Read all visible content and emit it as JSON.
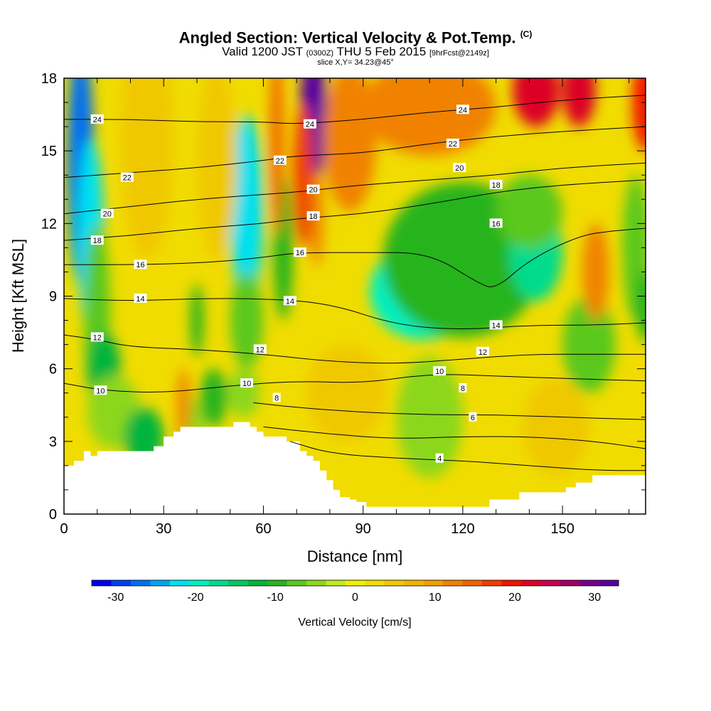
{
  "title": {
    "main": "Angled Section: Vertical Velocity & Pot.Temp.",
    "main_unit": "(C)",
    "valid_prefix": "Valid 1200 JST",
    "valid_utc": "(0300Z)",
    "valid_date": "THU 5 Feb 2015",
    "forecast": "[9hrFcst@2149z]",
    "slice": "slice X,Y= 34.23@45°"
  },
  "chart_data": {
    "type": "heatmap",
    "xlabel": "Distance [nm]",
    "ylabel": "Height [Kft MSL]",
    "xlim": [
      0,
      175
    ],
    "ylim": [
      0,
      18
    ],
    "x_ticks": [
      0,
      30,
      60,
      90,
      120,
      150
    ],
    "y_ticks": [
      0,
      3,
      6,
      9,
      12,
      15,
      18
    ],
    "colorbar": {
      "label": "Vertical Velocity [cm/s]",
      "range": [
        -33,
        33
      ],
      "ticks": [
        -30,
        -20,
        -10,
        0,
        10,
        20,
        30
      ],
      "colors": [
        "#0000f0",
        "#0040f0",
        "#0070f0",
        "#00a4f0",
        "#00e0f0",
        "#00f0c0",
        "#00dc8c",
        "#00c864",
        "#00b43c",
        "#28b41e",
        "#5ac81e",
        "#8cd71e",
        "#beeb1e",
        "#f0f000",
        "#f0dc00",
        "#f0c800",
        "#f0b400",
        "#f0a000",
        "#f08200",
        "#f06400",
        "#f03c00",
        "#f01400",
        "#dc0028",
        "#c80050",
        "#a00064",
        "#78008c",
        "#5a00a0"
      ]
    },
    "velocity_features": [
      {
        "x": 5,
        "y": 14.5,
        "w": 4,
        "h": 5,
        "value": -28
      },
      {
        "x": 8,
        "y": 11.5,
        "w": 4,
        "h": 4,
        "value": -22
      },
      {
        "x": 10,
        "y": 8,
        "w": 4,
        "h": 4,
        "value": -8
      },
      {
        "x": 12,
        "y": 6,
        "w": 5,
        "h": 1.5,
        "value": -12
      },
      {
        "x": 15,
        "y": 4.2,
        "w": 8,
        "h": 1.5,
        "value": -6
      },
      {
        "x": 24,
        "y": 3.2,
        "w": 6,
        "h": 1.2,
        "value": -12
      },
      {
        "x": 38,
        "y": 3.6,
        "w": 4,
        "h": 1.2,
        "value": -6
      },
      {
        "x": 45,
        "y": 4.8,
        "w": 4,
        "h": 1.2,
        "value": -10
      },
      {
        "x": 55,
        "y": 12.5,
        "w": 5,
        "h": 4,
        "value": -22
      },
      {
        "x": 55,
        "y": 8,
        "w": 5,
        "h": 2,
        "value": -8
      },
      {
        "x": 66,
        "y": 11,
        "w": 3,
        "h": 3,
        "value": -10
      },
      {
        "x": 40,
        "y": 8,
        "w": 2,
        "h": 1.5,
        "value": -10
      },
      {
        "x": 108,
        "y": 9.2,
        "w": 16,
        "h": 2,
        "value": -20
      },
      {
        "x": 120,
        "y": 10.5,
        "w": 24,
        "h": 3.2,
        "value": -9
      },
      {
        "x": 142,
        "y": 10.8,
        "w": 8,
        "h": 2,
        "value": -16
      },
      {
        "x": 140,
        "y": 12.5,
        "w": 10,
        "h": 1.5,
        "value": -8
      },
      {
        "x": 110,
        "y": 4,
        "w": 10,
        "h": 2.5,
        "value": -4
      },
      {
        "x": 158,
        "y": 7,
        "w": 8,
        "h": 2,
        "value": -8
      },
      {
        "x": 172,
        "y": 11,
        "w": 4,
        "h": 3,
        "value": -8
      },
      {
        "x": 175,
        "y": 8.6,
        "w": 3,
        "h": 1.5,
        "value": -10
      },
      {
        "x": 54,
        "y": 5,
        "w": 5,
        "h": 1,
        "value": -5
      },
      {
        "x": 75,
        "y": 16.5,
        "w": 4,
        "h": 3,
        "value": 33
      },
      {
        "x": 72,
        "y": 14,
        "w": 3,
        "h": 3,
        "value": 18
      },
      {
        "x": 76,
        "y": 12.2,
        "w": 2,
        "h": 2,
        "value": 12
      },
      {
        "x": 64,
        "y": 15.5,
        "w": 2,
        "h": 4,
        "value": 14
      },
      {
        "x": 142,
        "y": 17.5,
        "w": 7,
        "h": 1.5,
        "value": 22
      },
      {
        "x": 155,
        "y": 17.5,
        "w": 5,
        "h": 1.5,
        "value": 22
      },
      {
        "x": 175,
        "y": 17,
        "w": 4,
        "h": 2,
        "value": 20
      },
      {
        "x": 110,
        "y": 16.8,
        "w": 20,
        "h": 2,
        "value": 12
      },
      {
        "x": 86,
        "y": 15.5,
        "w": 8,
        "h": 3,
        "value": 12
      },
      {
        "x": 25,
        "y": 15.5,
        "w": 8,
        "h": 5,
        "value": 6
      },
      {
        "x": 46,
        "y": 14.5,
        "w": 6,
        "h": 4,
        "value": 5
      },
      {
        "x": 160,
        "y": 10,
        "w": 4,
        "h": 2,
        "value": 11
      },
      {
        "x": 36,
        "y": 4.5,
        "w": 2,
        "h": 1.5,
        "value": 12
      },
      {
        "x": 148,
        "y": 3.6,
        "w": 10,
        "h": 2,
        "value": 6
      },
      {
        "x": 85,
        "y": 5,
        "w": 12,
        "h": 2,
        "value": 6
      }
    ],
    "terrain": [
      [
        0,
        2
      ],
      [
        3,
        2
      ],
      [
        3,
        2.2
      ],
      [
        6,
        2.2
      ],
      [
        6,
        2.6
      ],
      [
        8,
        2.6
      ],
      [
        8,
        2.4
      ],
      [
        10,
        2.4
      ],
      [
        10,
        2.6
      ],
      [
        24,
        2.6
      ],
      [
        24,
        2.6
      ],
      [
        27,
        2.6
      ],
      [
        27,
        2.8
      ],
      [
        30,
        2.8
      ],
      [
        30,
        3.2
      ],
      [
        33,
        3.2
      ],
      [
        33,
        3.4
      ],
      [
        35,
        3.4
      ],
      [
        35,
        3.6
      ],
      [
        45,
        3.6
      ],
      [
        45,
        3.6
      ],
      [
        51,
        3.6
      ],
      [
        51,
        3.8
      ],
      [
        56,
        3.8
      ],
      [
        56,
        3.6
      ],
      [
        58,
        3.6
      ],
      [
        58,
        3.4
      ],
      [
        60,
        3.4
      ],
      [
        60,
        3.2
      ],
      [
        67,
        3.2
      ],
      [
        67,
        3.0
      ],
      [
        71,
        3.0
      ],
      [
        71,
        2.6
      ],
      [
        73,
        2.6
      ],
      [
        73,
        2.4
      ],
      [
        75,
        2.4
      ],
      [
        75,
        2.2
      ],
      [
        77,
        2.2
      ],
      [
        77,
        1.8
      ],
      [
        79,
        1.8
      ],
      [
        79,
        1.4
      ],
      [
        81,
        1.4
      ],
      [
        81,
        1.0
      ],
      [
        83,
        1.0
      ],
      [
        83,
        0.7
      ],
      [
        86,
        0.7
      ],
      [
        86,
        0.6
      ],
      [
        88,
        0.6
      ],
      [
        88,
        0.5
      ],
      [
        91,
        0.5
      ],
      [
        91,
        0.3
      ],
      [
        128,
        0.3
      ],
      [
        128,
        0.6
      ],
      [
        137,
        0.6
      ],
      [
        137,
        0.9
      ],
      [
        151,
        0.9
      ],
      [
        151,
        1.1
      ],
      [
        154,
        1.1
      ],
      [
        154,
        1.3
      ],
      [
        159,
        1.3
      ],
      [
        159,
        1.6
      ],
      [
        175,
        1.6
      ],
      [
        175,
        0
      ],
      [
        0,
        0
      ]
    ],
    "isentropes": [
      {
        "value": 4,
        "points": [
          [
            68,
            3.0
          ],
          [
            80,
            2.5
          ],
          [
            100,
            2.3
          ],
          [
            120,
            2.2
          ],
          [
            140,
            2.0
          ],
          [
            160,
            1.8
          ],
          [
            175,
            1.8
          ]
        ]
      },
      {
        "value": 6,
        "points": [
          [
            60,
            3.6
          ],
          [
            80,
            3.3
          ],
          [
            100,
            3.1
          ],
          [
            120,
            3.2
          ],
          [
            140,
            3.2
          ],
          [
            160,
            3.0
          ],
          [
            175,
            2.7
          ]
        ]
      },
      {
        "value": 8,
        "points": [
          [
            57,
            4.6
          ],
          [
            70,
            4.4
          ],
          [
            90,
            4.2
          ],
          [
            110,
            4.1
          ],
          [
            130,
            4.1
          ],
          [
            150,
            4.0
          ],
          [
            175,
            3.9
          ]
        ]
      },
      {
        "value": 10,
        "points": [
          [
            0,
            5.4
          ],
          [
            12,
            5.1
          ],
          [
            30,
            5.0
          ],
          [
            50,
            5.3
          ],
          [
            70,
            5.5
          ],
          [
            90,
            5.4
          ],
          [
            110,
            5.8
          ],
          [
            130,
            5.7
          ],
          [
            150,
            5.6
          ],
          [
            175,
            5.5
          ]
        ]
      },
      {
        "value": 12,
        "points": [
          [
            0,
            7.4
          ],
          [
            10,
            7.2
          ],
          [
            20,
            6.9
          ],
          [
            40,
            6.8
          ],
          [
            60,
            6.6
          ],
          [
            80,
            6.3
          ],
          [
            100,
            6.2
          ],
          [
            120,
            6.4
          ],
          [
            140,
            6.6
          ],
          [
            160,
            6.6
          ],
          [
            175,
            6.6
          ]
        ]
      },
      {
        "value": 14,
        "points": [
          [
            0,
            8.9
          ],
          [
            20,
            8.8
          ],
          [
            40,
            8.9
          ],
          [
            60,
            8.9
          ],
          [
            80,
            8.7
          ],
          [
            100,
            7.8
          ],
          [
            120,
            7.6
          ],
          [
            140,
            7.8
          ],
          [
            160,
            7.8
          ],
          [
            175,
            7.9
          ]
        ]
      },
      {
        "value": 16,
        "points": [
          [
            0,
            10.3
          ],
          [
            25,
            10.3
          ],
          [
            45,
            10.4
          ],
          [
            60,
            10.6
          ],
          [
            70,
            10.8
          ],
          [
            90,
            10.8
          ],
          [
            110,
            10.8
          ],
          [
            125,
            9.5
          ],
          [
            130,
            9.3
          ],
          [
            140,
            10.5
          ],
          [
            155,
            11.5
          ],
          [
            165,
            11.7
          ],
          [
            175,
            11.8
          ]
        ]
      },
      {
        "value": 18,
        "points": [
          [
            0,
            11.3
          ],
          [
            20,
            11.5
          ],
          [
            40,
            11.8
          ],
          [
            60,
            12.0
          ],
          [
            70,
            12.2
          ],
          [
            90,
            12.4
          ],
          [
            110,
            12.8
          ],
          [
            130,
            13.3
          ],
          [
            150,
            13.6
          ],
          [
            175,
            13.8
          ]
        ]
      },
      {
        "value": 20,
        "points": [
          [
            0,
            12.4
          ],
          [
            20,
            12.7
          ],
          [
            40,
            13.0
          ],
          [
            60,
            13.2
          ],
          [
            70,
            13.3
          ],
          [
            90,
            13.6
          ],
          [
            110,
            13.8
          ],
          [
            130,
            14.0
          ],
          [
            150,
            14.3
          ],
          [
            175,
            14.5
          ]
        ]
      },
      {
        "value": 22,
        "points": [
          [
            0,
            13.9
          ],
          [
            20,
            14.1
          ],
          [
            40,
            14.3
          ],
          [
            60,
            14.6
          ],
          [
            70,
            14.8
          ],
          [
            90,
            14.9
          ],
          [
            110,
            15.3
          ],
          [
            130,
            15.6
          ],
          [
            150,
            15.8
          ],
          [
            175,
            16.0
          ]
        ]
      },
      {
        "value": 24,
        "points": [
          [
            0,
            16.3
          ],
          [
            20,
            16.3
          ],
          [
            40,
            16.2
          ],
          [
            60,
            16.2
          ],
          [
            70,
            16.1
          ],
          [
            90,
            16.3
          ],
          [
            110,
            16.6
          ],
          [
            130,
            16.8
          ],
          [
            150,
            17.1
          ],
          [
            175,
            17.3
          ]
        ]
      }
    ],
    "contour_labels": [
      {
        "text": "24",
        "x": 10,
        "y": 16.3
      },
      {
        "text": "22",
        "x": 19,
        "y": 13.9
      },
      {
        "text": "20",
        "x": 13,
        "y": 12.4
      },
      {
        "text": "18",
        "x": 10,
        "y": 11.3
      },
      {
        "text": "16",
        "x": 23,
        "y": 10.3
      },
      {
        "text": "14",
        "x": 23,
        "y": 8.9
      },
      {
        "text": "12",
        "x": 10,
        "y": 7.3
      },
      {
        "text": "10",
        "x": 11,
        "y": 5.1
      },
      {
        "text": "12",
        "x": 59,
        "y": 6.8
      },
      {
        "text": "10",
        "x": 55,
        "y": 5.4
      },
      {
        "text": "8",
        "x": 64,
        "y": 4.8
      },
      {
        "text": "14",
        "x": 68,
        "y": 8.8
      },
      {
        "text": "16",
        "x": 71,
        "y": 10.8
      },
      {
        "text": "18",
        "x": 75,
        "y": 12.3
      },
      {
        "text": "20",
        "x": 75,
        "y": 13.4
      },
      {
        "text": "22",
        "x": 65,
        "y": 14.6
      },
      {
        "text": "24",
        "x": 74,
        "y": 16.1
      },
      {
        "text": "24",
        "x": 120,
        "y": 16.7
      },
      {
        "text": "22",
        "x": 117,
        "y": 15.3
      },
      {
        "text": "20",
        "x": 119,
        "y": 14.3
      },
      {
        "text": "18",
        "x": 130,
        "y": 13.6
      },
      {
        "text": "16",
        "x": 130,
        "y": 12.0
      },
      {
        "text": "14",
        "x": 130,
        "y": 7.8
      },
      {
        "text": "12",
        "x": 126,
        "y": 6.7
      },
      {
        "text": "10",
        "x": 113,
        "y": 5.9
      },
      {
        "text": "8",
        "x": 120,
        "y": 5.2
      },
      {
        "text": "6",
        "x": 123,
        "y": 4.0
      },
      {
        "text": "4",
        "x": 113,
        "y": 2.3
      }
    ]
  }
}
